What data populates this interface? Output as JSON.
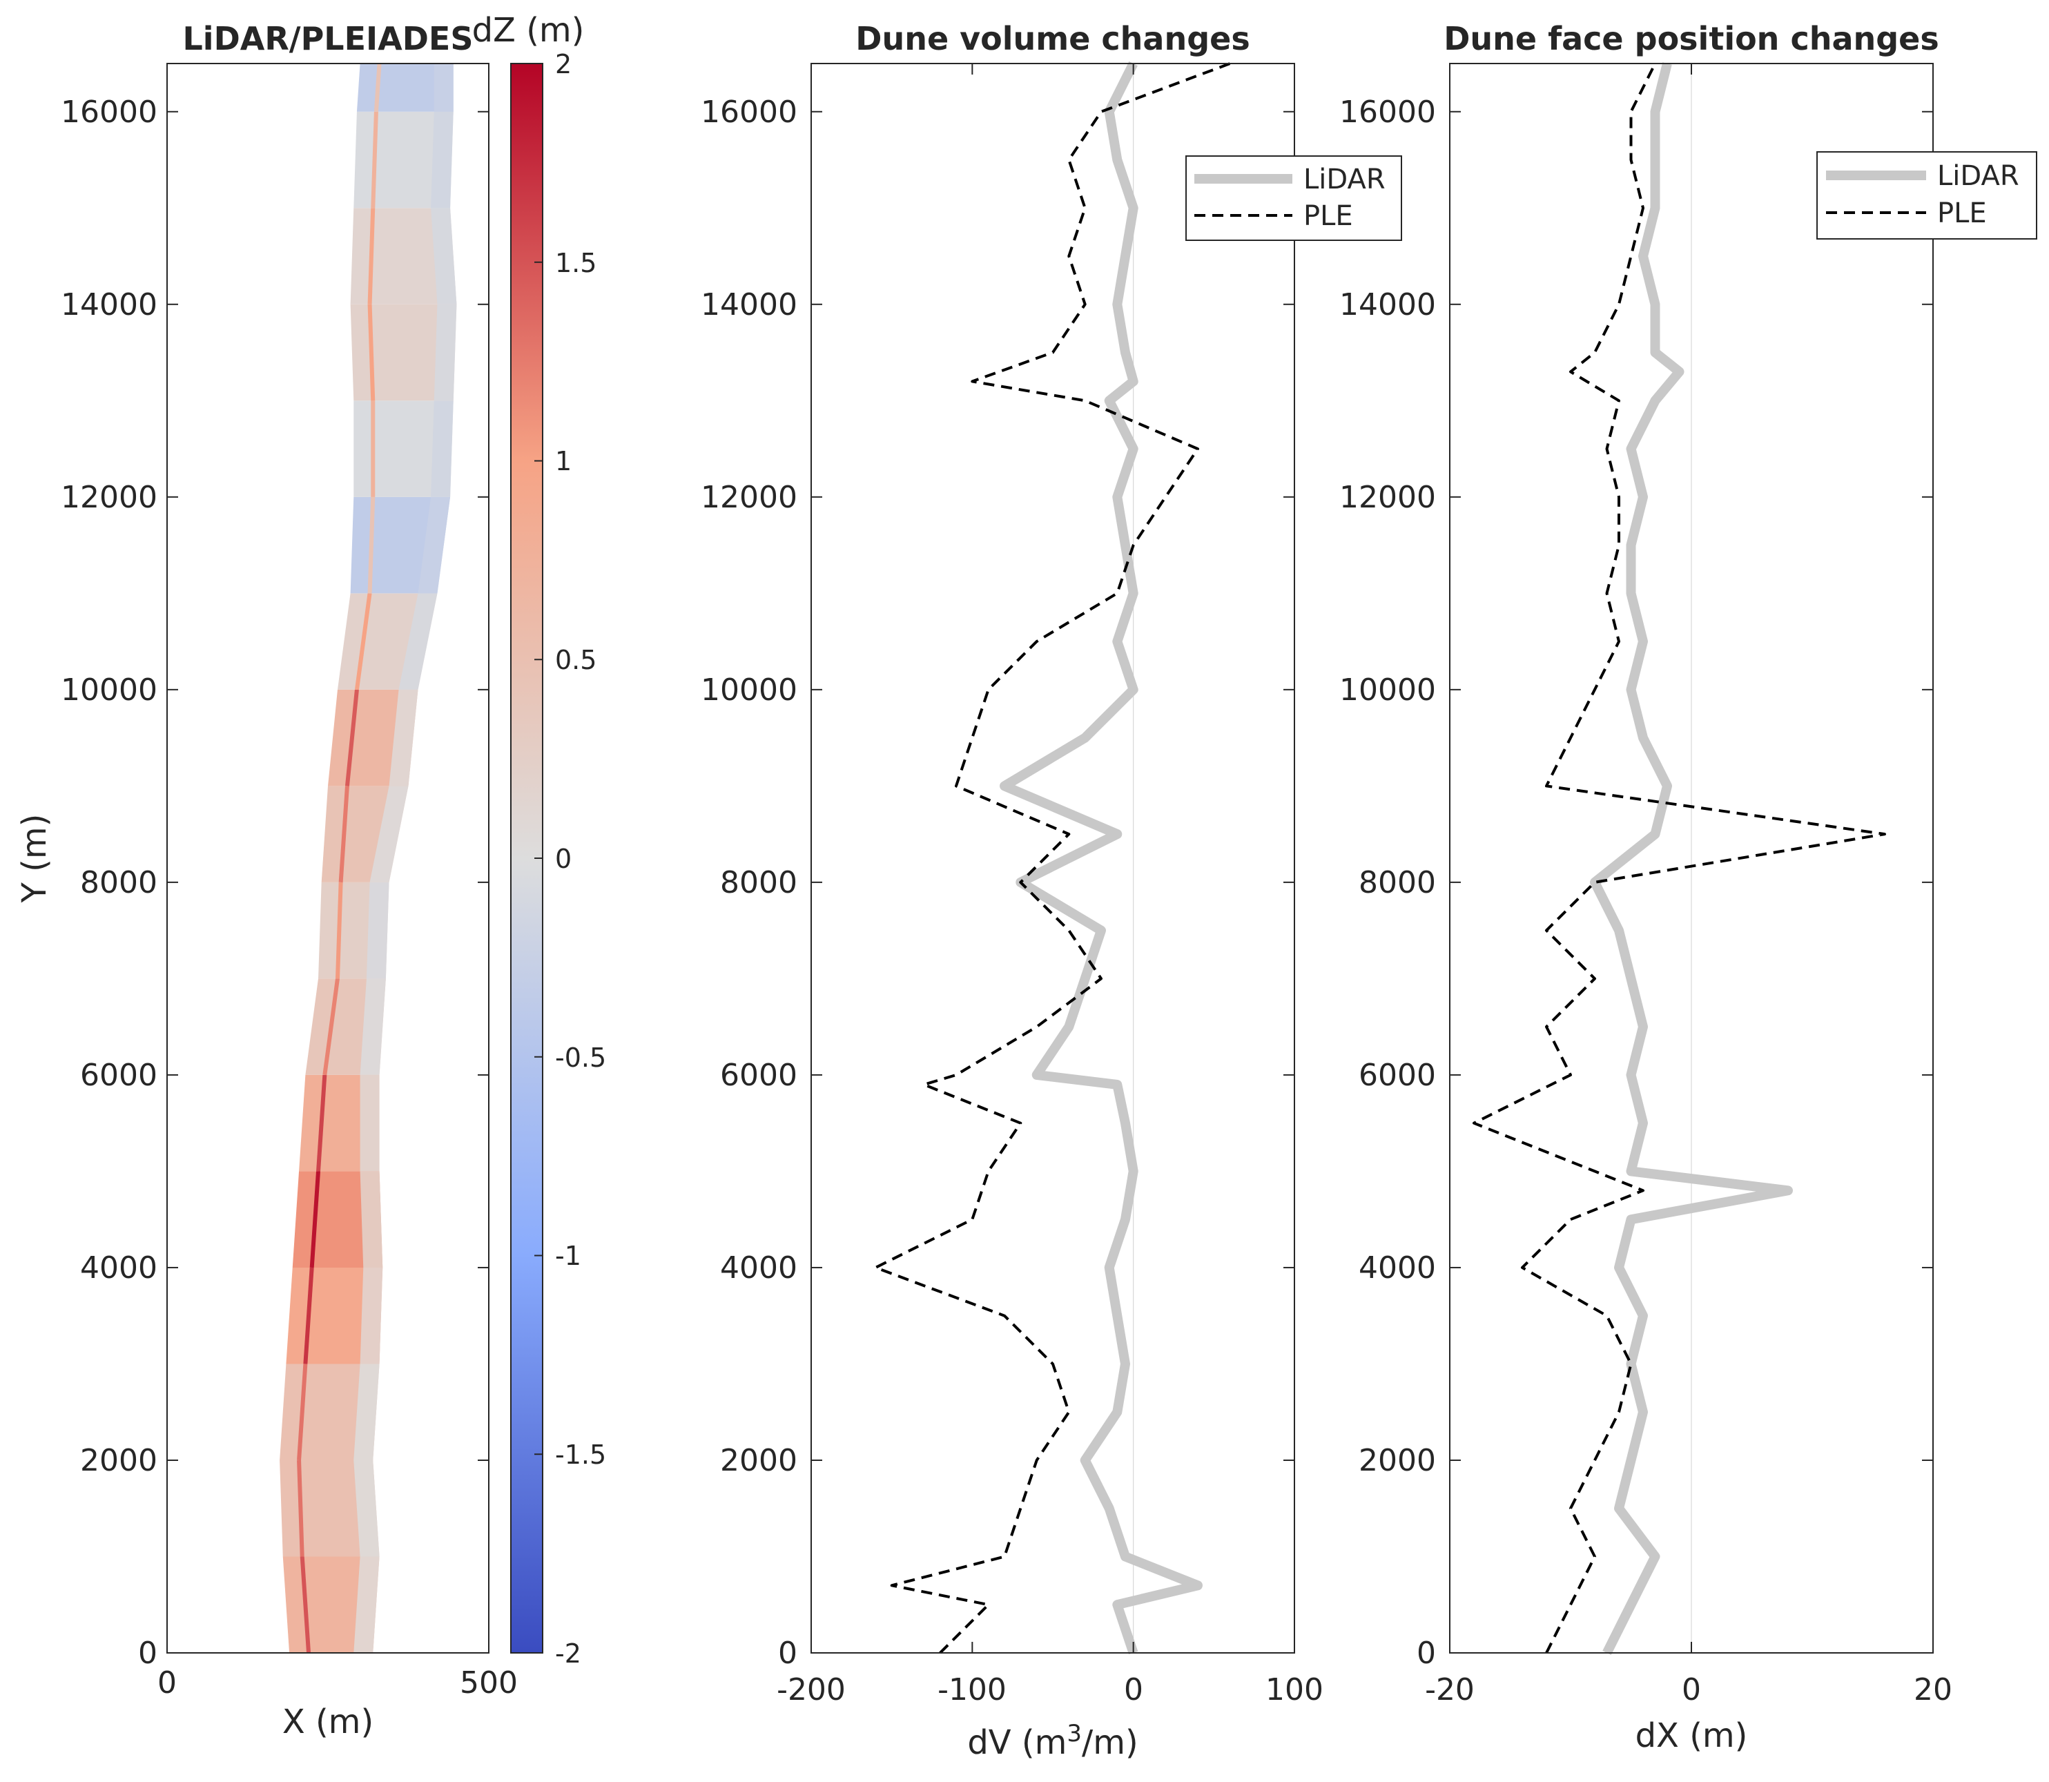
{
  "chart_data": [
    {
      "type": "heatmap",
      "title": "LiDAR/PLEIADES",
      "xlabel": "X (m)",
      "ylabel": "Y (m)",
      "xlim": [
        0,
        500
      ],
      "ylim": [
        0,
        16500
      ],
      "xticks": [
        "0",
        "500"
      ],
      "yticks": [
        "0",
        "2000",
        "4000",
        "6000",
        "8000",
        "10000",
        "12000",
        "14000",
        "16000"
      ],
      "colorbar": {
        "label": "dZ (m)",
        "range": [
          -2,
          2
        ],
        "ticks": [
          "2",
          "1.5",
          "1",
          "0.5",
          "0",
          "-0.5",
          "-1",
          "-1.5",
          "-2"
        ],
        "colormap": [
          "#3a4cc0",
          "#89abfd",
          "#dddddd",
          "#f6a385",
          "#b40426"
        ]
      },
      "strip_profile": [
        {
          "y": 0,
          "x_left": 190,
          "x_right": 320,
          "dz": 0.8
        },
        {
          "y": 1000,
          "x_left": 180,
          "x_right": 330,
          "dz": 0.6
        },
        {
          "y": 2000,
          "x_left": 175,
          "x_right": 320,
          "dz": 0.4
        },
        {
          "y": 3000,
          "x_left": 185,
          "x_right": 330,
          "dz": 0.6
        },
        {
          "y": 4000,
          "x_left": 195,
          "x_right": 335,
          "dz": 1.2
        },
        {
          "y": 5000,
          "x_left": 205,
          "x_right": 330,
          "dz": 1.0
        },
        {
          "y": 6000,
          "x_left": 215,
          "x_right": 330,
          "dz": 0.6
        },
        {
          "y": 7000,
          "x_left": 235,
          "x_right": 340,
          "dz": 0.2
        },
        {
          "y": 8000,
          "x_left": 240,
          "x_right": 345,
          "dz": 0.3
        },
        {
          "y": 9000,
          "x_left": 250,
          "x_right": 375,
          "dz": 0.6
        },
        {
          "y": 10000,
          "x_left": 265,
          "x_right": 390,
          "dz": 0.7
        },
        {
          "y": 11000,
          "x_left": 285,
          "x_right": 420,
          "dz": -0.3
        },
        {
          "y": 12000,
          "x_left": 290,
          "x_right": 440,
          "dz": -0.4
        },
        {
          "y": 13000,
          "x_left": 290,
          "x_right": 445,
          "dz": 0.3
        },
        {
          "y": 14000,
          "x_left": 285,
          "x_right": 450,
          "dz": 0.1
        },
        {
          "y": 15000,
          "x_left": 290,
          "x_right": 440,
          "dz": 0.2
        },
        {
          "y": 16000,
          "x_left": 295,
          "x_right": 445,
          "dz": -0.3
        },
        {
          "y": 16500,
          "x_left": 300,
          "x_right": 445,
          "dz": -0.4
        }
      ]
    },
    {
      "type": "line",
      "title": "Dune volume changes",
      "xlabel": "dV (m3/m)",
      "ylabel": "",
      "xlim": [
        -200,
        100
      ],
      "ylim": [
        0,
        16500
      ],
      "xticks": [
        "-200",
        "-100",
        "0",
        "100"
      ],
      "yticks": [
        "0",
        "2000",
        "4000",
        "6000",
        "8000",
        "10000",
        "12000",
        "14000",
        "16000"
      ],
      "legend": {
        "position": "top-right",
        "entries": [
          "LiDAR",
          "PLE"
        ]
      },
      "y": [
        0,
        500,
        700,
        1000,
        1500,
        2000,
        2500,
        3000,
        3500,
        4000,
        4500,
        5000,
        5500,
        5900,
        6000,
        6500,
        7000,
        7500,
        8000,
        8500,
        9000,
        9500,
        10000,
        10500,
        11000,
        11500,
        12000,
        12500,
        13000,
        13200,
        13500,
        14000,
        14500,
        15000,
        15500,
        16000,
        16500
      ],
      "series": [
        {
          "name": "LiDAR",
          "style": "solid",
          "color": "#c8c8c8",
          "values": [
            0,
            -10,
            40,
            -5,
            -15,
            -30,
            -10,
            -5,
            -10,
            -15,
            -5,
            0,
            -5,
            -10,
            -60,
            -40,
            -30,
            -20,
            -70,
            -10,
            -80,
            -30,
            0,
            -10,
            0,
            -5,
            -10,
            0,
            -15,
            0,
            -5,
            -10,
            -5,
            0,
            -10,
            -15,
            0
          ]
        },
        {
          "name": "PLE",
          "style": "dashed",
          "color": "#000000",
          "values": [
            -120,
            -90,
            -150,
            -80,
            -70,
            -60,
            -40,
            -50,
            -80,
            -160,
            -100,
            -90,
            -70,
            -130,
            -110,
            -60,
            -20,
            -40,
            -70,
            -40,
            -110,
            -100,
            -90,
            -60,
            -10,
            0,
            20,
            40,
            -30,
            -100,
            -50,
            -30,
            -40,
            -30,
            -40,
            -20,
            60
          ]
        }
      ]
    },
    {
      "type": "line",
      "title": "Dune face position changes",
      "xlabel": "dX (m)",
      "ylabel": "",
      "xlim": [
        -20,
        20
      ],
      "ylim": [
        0,
        16500
      ],
      "xticks": [
        "-20",
        "0",
        "20"
      ],
      "yticks": [
        "0",
        "2000",
        "4000",
        "6000",
        "8000",
        "10000",
        "12000",
        "14000",
        "16000"
      ],
      "legend": {
        "position": "top-right",
        "entries": [
          "LiDAR",
          "PLE"
        ]
      },
      "y": [
        0,
        500,
        1000,
        1500,
        2000,
        2500,
        3000,
        3500,
        4000,
        4500,
        4800,
        5000,
        5500,
        6000,
        6500,
        7000,
        7500,
        8000,
        8500,
        9000,
        9500,
        10000,
        10500,
        11000,
        11500,
        12000,
        12500,
        13000,
        13300,
        13500,
        14000,
        14500,
        15000,
        15500,
        16000,
        16500
      ],
      "series": [
        {
          "name": "LiDAR",
          "style": "solid",
          "color": "#c8c8c8",
          "values": [
            -7,
            -5,
            -3,
            -6,
            -5,
            -4,
            -5,
            -4,
            -6,
            -5,
            8,
            -5,
            -4,
            -5,
            -4,
            -5,
            -6,
            -8,
            -3,
            -2,
            -4,
            -5,
            -4,
            -5,
            -5,
            -4,
            -5,
            -3,
            -1,
            -3,
            -3,
            -4,
            -3,
            -3,
            -3,
            -2
          ]
        },
        {
          "name": "PLE",
          "style": "dashed",
          "color": "#000000",
          "values": [
            -12,
            -10,
            -8,
            -10,
            -8,
            -6,
            -5,
            -7,
            -14,
            -10,
            -4,
            -8,
            -18,
            -10,
            -12,
            -8,
            -12,
            -8,
            16,
            -12,
            -10,
            -8,
            -6,
            -7,
            -6,
            -6,
            -7,
            -6,
            -10,
            -8,
            -6,
            -5,
            -4,
            -5,
            -5,
            -3
          ]
        }
      ]
    }
  ]
}
